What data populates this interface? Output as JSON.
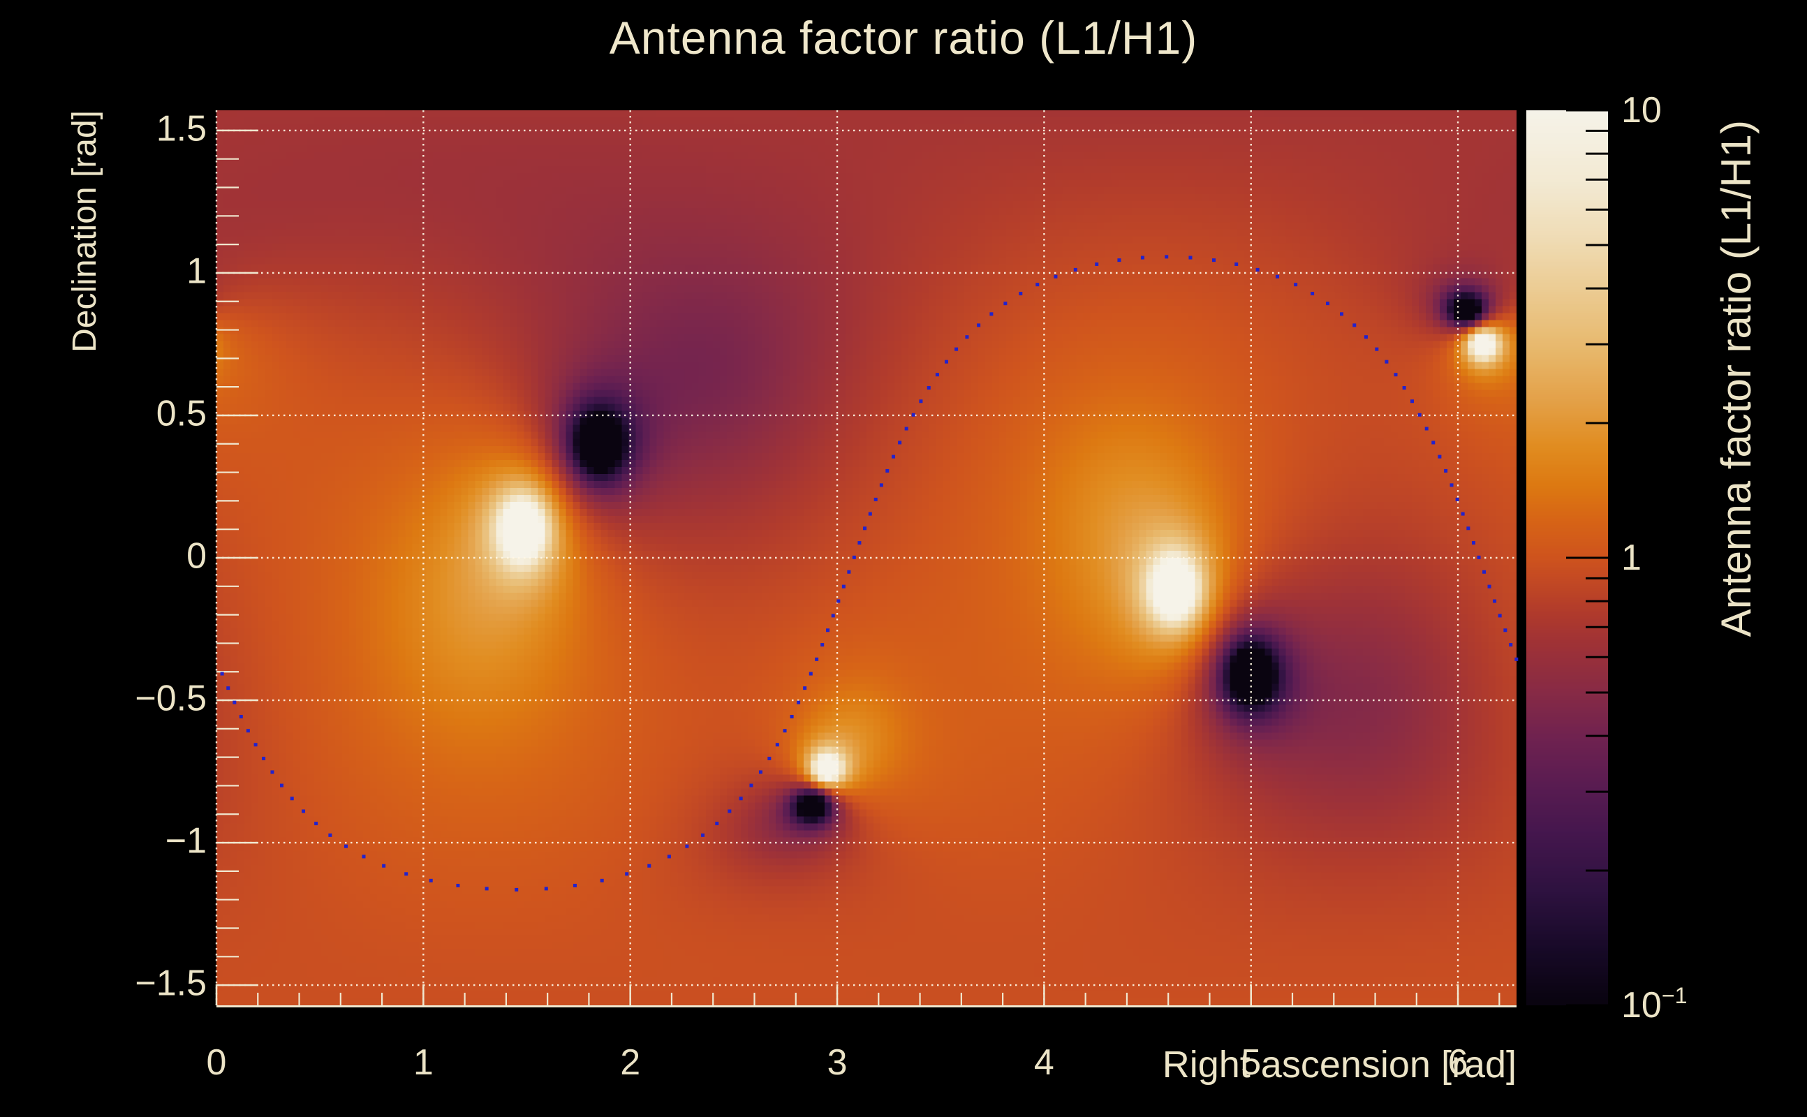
{
  "title": {
    "text": "Antenna factor ratio (L1/H1)",
    "color": "#efe7cb"
  },
  "axes": {
    "x": {
      "title": "Right ascension [rad]",
      "range": [
        0,
        6.283185
      ],
      "major_ticks": [
        0,
        1,
        2,
        3,
        4,
        5,
        6
      ],
      "tick_labels": [
        "0",
        "1",
        "2",
        "3",
        "4",
        "5",
        "6"
      ],
      "minor_step": 0.2
    },
    "y": {
      "title": "Declination [rad]",
      "range": [
        -1.570796,
        1.570796
      ],
      "major_ticks": [
        1.5,
        1,
        0.5,
        0,
        -0.5,
        -1,
        -1.5
      ],
      "tick_labels": [
        "1.5",
        "1",
        "0.5",
        "0",
        "−0.5",
        "−1",
        "−1.5"
      ],
      "minor_step": 0.1
    }
  },
  "colorbar": {
    "title": "Antenna factor ratio (L1/H1)",
    "scale": "log",
    "range": [
      0.1,
      10
    ],
    "major_tick_values": [
      10,
      1,
      0.1
    ],
    "major_tick_labels": [
      {
        "base": "10",
        "exp": ""
      },
      {
        "base": "1",
        "exp": ""
      },
      {
        "base": "10",
        "exp": "−1"
      }
    ],
    "minor_tick_values": [
      9,
      8,
      7,
      6,
      5,
      4,
      3,
      2,
      0.9,
      0.8,
      0.7,
      0.6,
      0.5,
      0.4,
      0.3,
      0.2
    ],
    "tick_color": "#000000"
  },
  "chart_data": {
    "type": "heatmap",
    "title": "Antenna factor ratio (L1/H1)",
    "xlabel": "Right ascension [rad]",
    "ylabel": "Declination [rad]",
    "zlabel": "Antenna factor ratio (L1/H1)",
    "x_range": [
      0,
      6.283185
    ],
    "y_range": [
      -1.570796,
      1.570796
    ],
    "z_range": [
      0.1,
      10
    ],
    "z_scale": "log",
    "grid_on": true,
    "bins": [
      186,
      128
    ],
    "background_ratio": 1.07,
    "ratio_maxima_white_spots": [
      {
        "ra": 1.48,
        "dec": 0.1
      },
      {
        "ra": 4.63,
        "dec": -0.11
      },
      {
        "ra": 2.95,
        "dec": -0.74
      },
      {
        "ra": 6.12,
        "dec": 0.75
      }
    ],
    "ratio_minima_dark_spots": [
      {
        "ra": 1.85,
        "dec": 0.4
      },
      {
        "ra": 5.0,
        "dec": -0.41
      },
      {
        "ra": 2.88,
        "dec": -0.87
      },
      {
        "ra": 6.04,
        "dec": 0.87
      }
    ],
    "bright_lobes": [
      {
        "ra": 1.48,
        "dec": 0.1,
        "width": 0.085,
        "amp": 2.3
      },
      {
        "ra": 4.63,
        "dec": -0.11,
        "width": 0.085,
        "amp": 2.3
      },
      {
        "ra": 2.95,
        "dec": -0.74,
        "width": 0.048,
        "amp": 1.9
      },
      {
        "ra": 6.12,
        "dec": 0.75,
        "width": 0.048,
        "amp": 1.9
      },
      {
        "ra": 1.25,
        "dec": -0.18,
        "width": 0.55,
        "amp": 0.3
      },
      {
        "ra": 4.4,
        "dec": 0.14,
        "width": 0.5,
        "amp": 0.28
      },
      {
        "ra": 0.05,
        "dec": 0.72,
        "width": 0.35,
        "amp": 0.15
      },
      {
        "ra": 3.1,
        "dec": -0.62,
        "width": 0.22,
        "amp": 0.22
      }
    ],
    "dark_lobes": [
      {
        "ra": 1.85,
        "dec": 0.4,
        "width": 0.085,
        "amp": 2.3
      },
      {
        "ra": 5.0,
        "dec": -0.41,
        "width": 0.085,
        "amp": 2.3
      },
      {
        "ra": 2.88,
        "dec": -0.87,
        "width": 0.048,
        "amp": 1.9
      },
      {
        "ra": 6.04,
        "dec": 0.87,
        "width": 0.048,
        "amp": 1.9
      },
      {
        "ra": 2.42,
        "dec": 0.64,
        "width": 0.55,
        "amp": 0.34
      },
      {
        "ra": 5.58,
        "dec": -0.52,
        "width": 0.55,
        "amp": 0.34
      },
      {
        "ra": 1.7,
        "dec": 1.2,
        "width": 0.8,
        "amp": 0.12
      },
      {
        "ra": 6.3,
        "dec": 1.1,
        "width": 0.45,
        "amp": 0.15
      },
      {
        "ra": 2.7,
        "dec": -0.95,
        "width": 0.2,
        "amp": 0.22
      }
    ],
    "overlay_curve": {
      "type": "sky_circle_dotted",
      "center_ra": 1.45,
      "center_dec": 0.46,
      "radius_rad": 1.625,
      "n_points": 110,
      "marker": "square",
      "marker_size": 5,
      "color": "#2222cc"
    },
    "grid": {
      "color": "rgba(255,247,229,0.92)",
      "style": "dotted"
    },
    "frame": {
      "bottom_line_color": "#f0e8d0",
      "tick_color": "#f0e8d0"
    },
    "colormap_stops": [
      [
        -1.0,
        "#0a0410"
      ],
      [
        -0.88,
        "#180a28"
      ],
      [
        -0.75,
        "#2e1240"
      ],
      [
        -0.62,
        "#45174e"
      ],
      [
        -0.5,
        "#5c1d52"
      ],
      [
        -0.4,
        "#712350"
      ],
      [
        -0.3,
        "#882b46"
      ],
      [
        -0.2,
        "#9e3238"
      ],
      [
        -0.12,
        "#b23c2c"
      ],
      [
        -0.05,
        "#c44a24"
      ],
      [
        0.0,
        "#cf541e"
      ],
      [
        0.08,
        "#d76417"
      ],
      [
        0.16,
        "#dd7912"
      ],
      [
        0.25,
        "#e18d21"
      ],
      [
        0.35,
        "#e4a148"
      ],
      [
        0.47,
        "#e8b96d"
      ],
      [
        0.6,
        "#ecc c93"
      ],
      [
        0.72,
        "#f0ddb6"
      ],
      [
        0.84,
        "#f3ead3"
      ],
      [
        1.0,
        "#f6f3e9"
      ]
    ]
  }
}
